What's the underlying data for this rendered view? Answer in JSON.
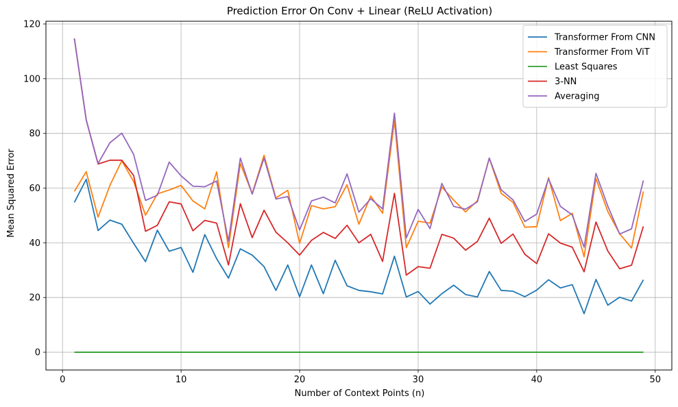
{
  "chart_data": {
    "type": "line",
    "title": "Prediction Error On Conv + Linear (ReLU Activation)",
    "xlabel": "Number of Context Points (n)",
    "ylabel": "Mean Squared Error",
    "xlim": [
      -1.4,
      51.4
    ],
    "ylim": [
      -6.5,
      121
    ],
    "xticks": [
      0,
      10,
      20,
      30,
      40,
      50
    ],
    "yticks": [
      0,
      20,
      40,
      60,
      80,
      100,
      120
    ],
    "grid": true,
    "legend_position": "top-right",
    "x": [
      1,
      2,
      3,
      4,
      5,
      6,
      7,
      8,
      9,
      10,
      11,
      12,
      13,
      14,
      15,
      16,
      17,
      18,
      19,
      20,
      21,
      22,
      23,
      24,
      25,
      26,
      27,
      28,
      29,
      30,
      31,
      32,
      33,
      34,
      35,
      36,
      37,
      38,
      39,
      40,
      41,
      42,
      43,
      44,
      45,
      46,
      47,
      48,
      49
    ],
    "series": [
      {
        "name": "Transformer From CNN",
        "color": "#1f77b4",
        "values": [
          54.8,
          63.2,
          44.5,
          48.3,
          46.8,
          39.8,
          33.1,
          44.6,
          36.9,
          38.3,
          29.2,
          43.0,
          34.2,
          27.1,
          37.8,
          35.5,
          31.3,
          22.6,
          31.9,
          20.3,
          31.9,
          21.4,
          33.6,
          24.3,
          22.6,
          22.1,
          21.3,
          35.1,
          20.2,
          22.2,
          17.6,
          21.4,
          24.5,
          21.1,
          20.2,
          29.5,
          22.6,
          22.3,
          20.3,
          22.7,
          26.5,
          23.5,
          24.7,
          14.1,
          26.6,
          17.2,
          20.1,
          18.7,
          26.5
        ]
      },
      {
        "name": "Transformer From ViT",
        "color": "#ff7f0e",
        "values": [
          58.8,
          66.0,
          49.4,
          61.0,
          70.0,
          62.4,
          50.1,
          57.9,
          59.3,
          61.0,
          55.3,
          52.4,
          65.9,
          38.2,
          69.0,
          58.0,
          72.0,
          56.4,
          59.2,
          39.8,
          53.6,
          52.4,
          53.2,
          61.2,
          46.8,
          57.1,
          50.8,
          84.7,
          38.2,
          47.9,
          47.2,
          60.4,
          55.6,
          51.3,
          55.4,
          70.9,
          58.1,
          54.8,
          45.7,
          45.9,
          63.8,
          48.1,
          50.8,
          34.9,
          63.5,
          51.4,
          43.3,
          38.1,
          58.8
        ]
      },
      {
        "name": "Least Squares",
        "color": "#2ca02c",
        "values": [
          0,
          0,
          0,
          0,
          0,
          0,
          0,
          0,
          0,
          0,
          0,
          0,
          0,
          0,
          0,
          0,
          0,
          0,
          0,
          0,
          0,
          0,
          0,
          0,
          0,
          0,
          0,
          0,
          0,
          0,
          0,
          0,
          0,
          0,
          0,
          0,
          0,
          0,
          0,
          0,
          0,
          0,
          0,
          0,
          0,
          0,
          0,
          0,
          0
        ]
      },
      {
        "name": "3-NN",
        "color": "#d62728",
        "values": [
          114.7,
          84.9,
          68.8,
          70.2,
          70.2,
          64.6,
          44.2,
          46.4,
          55.0,
          54.2,
          44.4,
          48.2,
          47.2,
          31.9,
          54.3,
          41.9,
          51.9,
          43.9,
          40.0,
          35.5,
          40.9,
          43.8,
          41.6,
          46.4,
          40.0,
          43.1,
          33.2,
          58.1,
          28.2,
          31.3,
          30.7,
          43.1,
          41.7,
          37.3,
          40.5,
          49.0,
          39.8,
          43.2,
          35.8,
          32.4,
          43.3,
          39.9,
          38.4,
          29.4,
          47.6,
          37.0,
          30.5,
          31.8,
          46.0
        ]
      },
      {
        "name": "Averaging",
        "color": "#9467bd",
        "values": [
          114.7,
          84.9,
          69.0,
          76.6,
          80.1,
          72.3,
          55.5,
          57.4,
          69.5,
          64.5,
          60.7,
          60.5,
          62.6,
          40.6,
          71.0,
          57.8,
          71.0,
          56.0,
          56.9,
          44.7,
          55.3,
          56.7,
          54.6,
          65.2,
          51.2,
          56.1,
          52.4,
          87.4,
          41.8,
          52.2,
          45.2,
          61.7,
          53.3,
          52.3,
          55.0,
          71.0,
          59.4,
          55.7,
          47.8,
          50.5,
          63.4,
          53.3,
          50.2,
          38.4,
          65.4,
          53.4,
          43.2,
          45.1,
          62.8
        ]
      }
    ]
  }
}
